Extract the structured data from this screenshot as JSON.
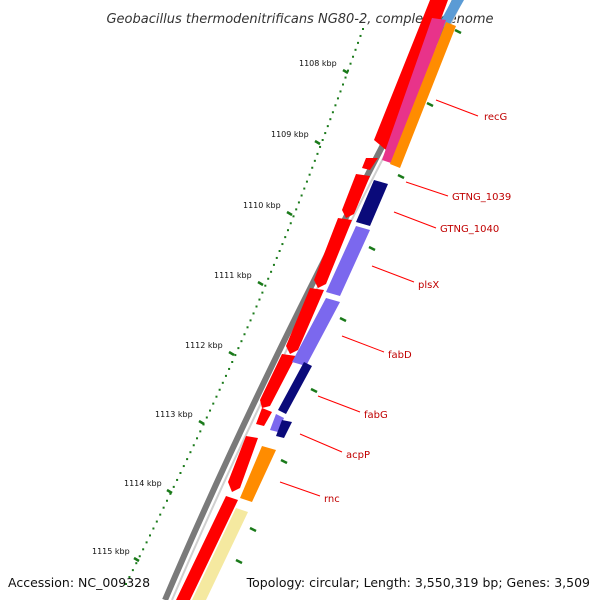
{
  "title": "Geobacillus thermodenitrificans NG80-2, complete genome",
  "footer": {
    "accession": "Accession: NC_009328",
    "summary": "Topology: circular; Length: 3,550,319 bp; Genes: 3,509"
  },
  "ticks": [
    "1108 kbp",
    "1109 kbp",
    "1110 kbp",
    "1111 kbp",
    "1112 kbp",
    "1113 kbp",
    "1114 kbp",
    "1115 kbp"
  ],
  "genes": [
    {
      "name": "recG"
    },
    {
      "name": "GTNG_1039"
    },
    {
      "name": "GTNG_1040"
    },
    {
      "name": "plsX"
    },
    {
      "name": "fabD"
    },
    {
      "name": "fabG"
    },
    {
      "name": "acpP"
    },
    {
      "name": "rnc"
    }
  ],
  "colors": {
    "forward_cds": "#ff0000",
    "backbone": "#808080",
    "tick": "#1a7a1a",
    "label_line": "#ff0000",
    "label_text": "#c00000"
  }
}
